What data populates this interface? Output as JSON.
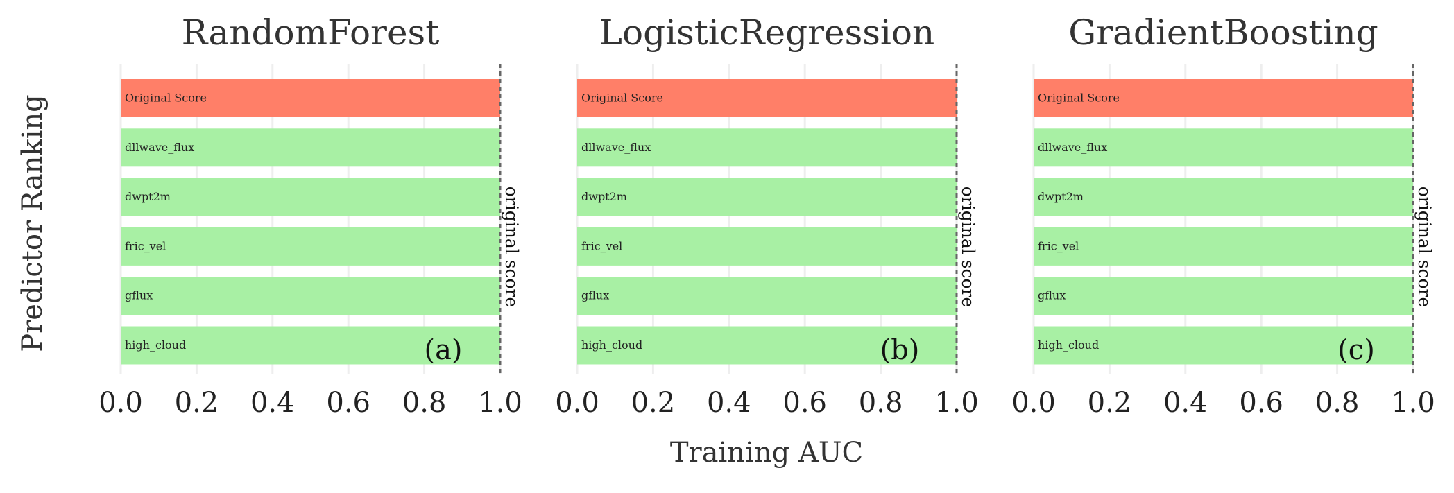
{
  "figure": {
    "ylabel": "Predictor Ranking",
    "xlabel": "Training AUC",
    "reference_label": "original score",
    "colors": {
      "original": "#ff7f68",
      "predictor": "#a8f0a4",
      "reference_line": "#666666",
      "grid": "#eeeeee",
      "text": "#333333"
    }
  },
  "chart_data": [
    {
      "type": "bar",
      "orientation": "horizontal",
      "title": "RandomForest",
      "panel_label": "(a)",
      "categories": [
        "Original Score",
        "dllwave_flux",
        "dwpt2m",
        "fric_vel",
        "gflux",
        "high_cloud"
      ],
      "values": [
        1.0,
        1.0,
        1.0,
        1.0,
        1.0,
        1.0
      ],
      "xlim": [
        0.0,
        1.0
      ],
      "xticks": [
        "0.0",
        "0.2",
        "0.4",
        "0.6",
        "0.8",
        "1.0"
      ],
      "reference_x": 1.0,
      "grid": true
    },
    {
      "type": "bar",
      "orientation": "horizontal",
      "title": "LogisticRegression",
      "panel_label": "(b)",
      "categories": [
        "Original Score",
        "dllwave_flux",
        "dwpt2m",
        "fric_vel",
        "gflux",
        "high_cloud"
      ],
      "values": [
        1.0,
        1.0,
        1.0,
        1.0,
        1.0,
        1.0
      ],
      "xlim": [
        0.0,
        1.0
      ],
      "xticks": [
        "0.0",
        "0.2",
        "0.4",
        "0.6",
        "0.8",
        "1.0"
      ],
      "reference_x": 1.0,
      "grid": true
    },
    {
      "type": "bar",
      "orientation": "horizontal",
      "title": "GradientBoosting",
      "panel_label": "(c)",
      "categories": [
        "Original Score",
        "dllwave_flux",
        "dwpt2m",
        "fric_vel",
        "gflux",
        "high_cloud"
      ],
      "values": [
        1.0,
        1.0,
        1.0,
        1.0,
        1.0,
        1.0
      ],
      "xlim": [
        0.0,
        1.0
      ],
      "xticks": [
        "0.0",
        "0.2",
        "0.4",
        "0.6",
        "0.8",
        "1.0"
      ],
      "reference_x": 1.0,
      "grid": true
    }
  ]
}
